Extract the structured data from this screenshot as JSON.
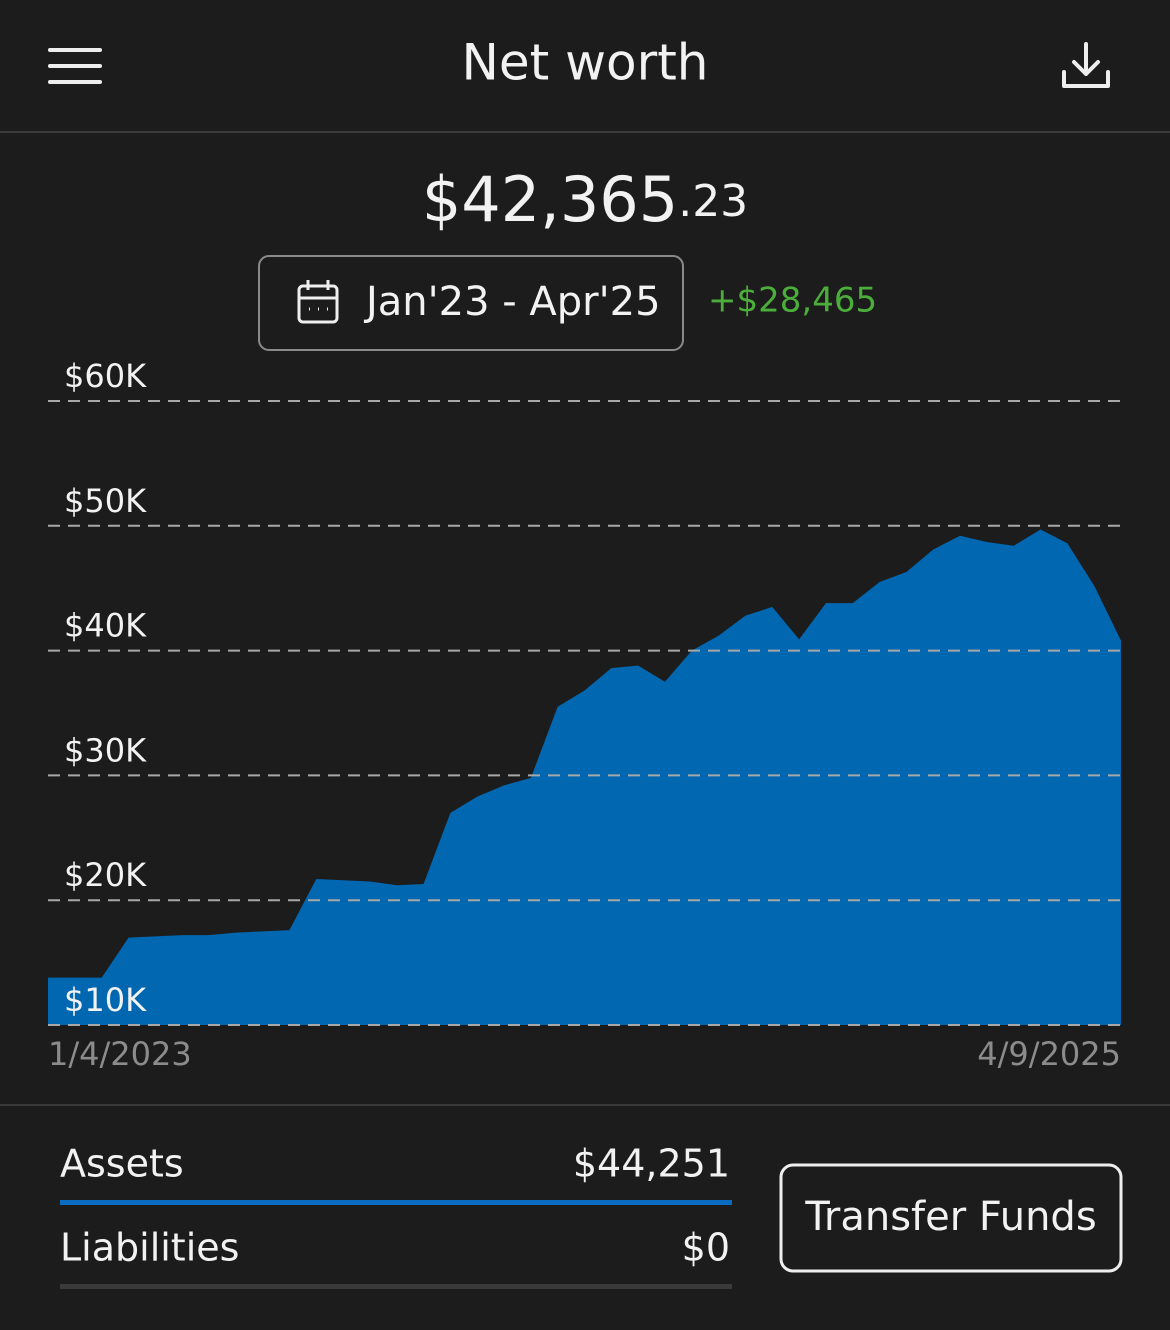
{
  "header": {
    "title": "Net worth"
  },
  "summary": {
    "amount": "$42,365",
    "cents": ".23",
    "date_range": "Jan'23 - Apr'25",
    "change": "+$28,465"
  },
  "chart_data": {
    "type": "area",
    "categories": [
      "1/4/2023",
      null,
      null,
      null,
      null,
      null,
      null,
      null,
      null,
      null,
      null,
      null,
      null,
      null,
      null,
      null,
      null,
      null,
      null,
      null,
      null,
      null,
      null,
      null,
      null,
      null,
      null,
      null,
      null,
      null,
      null,
      null,
      null,
      null,
      null,
      null,
      null,
      null,
      null,
      null,
      "4/9/2025"
    ],
    "values": [
      13800,
      13800,
      13800,
      17000,
      17100,
      17200,
      17200,
      17400,
      17500,
      17600,
      21700,
      21600,
      21500,
      21200,
      21300,
      27000,
      28300,
      29200,
      29800,
      35500,
      36800,
      38600,
      38800,
      37500,
      40000,
      41200,
      42800,
      43500,
      40900,
      43800,
      43800,
      45500,
      46300,
      48100,
      49200,
      48700,
      48400,
      49700,
      48600,
      45200,
      40800
    ],
    "color": "#0067b0",
    "ylim": [
      10000,
      60000
    ],
    "yticks": [
      {
        "value": 10000,
        "label": "$10K"
      },
      {
        "value": 20000,
        "label": "$20K"
      },
      {
        "value": 30000,
        "label": "$30K"
      },
      {
        "value": 40000,
        "label": "$40K"
      },
      {
        "value": 50000,
        "label": "$50K"
      },
      {
        "value": 60000,
        "label": "$60K"
      }
    ],
    "grid": true
  },
  "breakdown": {
    "rows": [
      {
        "label": "Assets",
        "value": "$44,251"
      },
      {
        "label": "Liabilities",
        "value": "$0"
      }
    ]
  },
  "button": "Transfer Funds"
}
